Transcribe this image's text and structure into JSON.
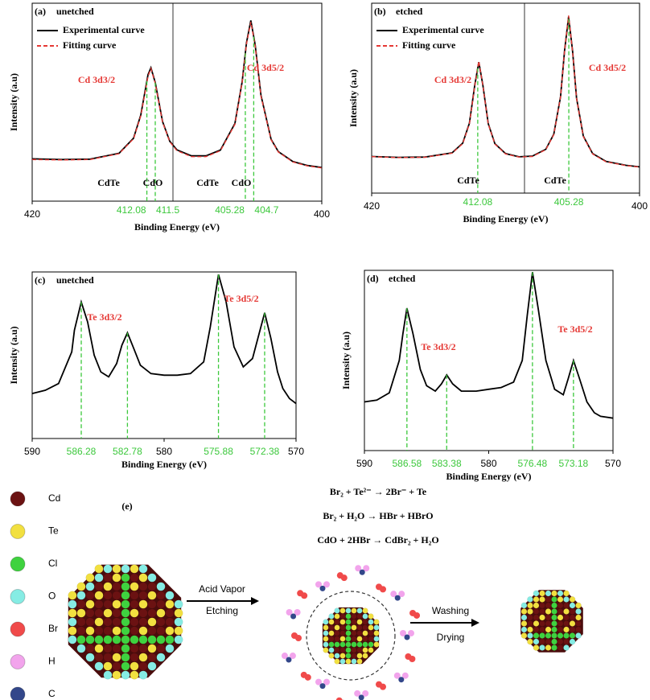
{
  "chart_data": [
    {
      "type": "line",
      "panel_label": "(a)",
      "title": "unetched",
      "xlabel": "Binding Energy (eV)",
      "ylabel": "Intensity (a.u)",
      "xlim": [
        420,
        400
      ],
      "xticks": [
        420,
        400
      ],
      "ylim": [
        0,
        1
      ],
      "x": [
        420,
        418,
        416,
        414,
        413,
        412.5,
        412,
        411.8,
        411.5,
        411,
        410.5,
        410,
        409,
        408,
        407,
        406,
        405.5,
        405.2,
        404.9,
        404.6,
        404.2,
        403.5,
        403,
        402,
        401,
        400
      ],
      "series": [
        {
          "name": "Experimental curve",
          "color": "#000000",
          "values": [
            0.214,
            0.21,
            0.212,
            0.242,
            0.318,
            0.435,
            0.639,
            0.674,
            0.599,
            0.403,
            0.303,
            0.259,
            0.229,
            0.229,
            0.258,
            0.392,
            0.603,
            0.8,
            0.913,
            0.79,
            0.535,
            0.312,
            0.25,
            0.2,
            0.18,
            0.17
          ]
        },
        {
          "name": "Fitting curve",
          "color": "#e53935",
          "dashed": true,
          "values": [
            0.21,
            0.208,
            0.21,
            0.24,
            0.315,
            0.43,
            0.63,
            0.67,
            0.595,
            0.4,
            0.3,
            0.255,
            0.225,
            0.225,
            0.255,
            0.388,
            0.6,
            0.795,
            0.905,
            0.785,
            0.53,
            0.31,
            0.248,
            0.198,
            0.178,
            0.168
          ]
        }
      ],
      "peaks": [
        412.08,
        411.5,
        405.28,
        404.7
      ],
      "peak_color": "#3cc83c",
      "peak_names": [
        "Cd 3d3/2",
        "Cd 3d5/2"
      ],
      "annotation_color": "#e53935",
      "component_labels": [
        "CdTe",
        "CdO",
        "CdTe",
        "CdO"
      ]
    },
    {
      "type": "line",
      "panel_label": "(b)",
      "title": "etched",
      "xlabel": "Binding Energy (eV)",
      "ylabel": "Intensity (a.u)",
      "xlim": [
        420,
        400
      ],
      "xticks": [
        420,
        400
      ],
      "ylim": [
        0,
        1
      ],
      "x": [
        420,
        418,
        416,
        414,
        413.2,
        412.7,
        412.3,
        412,
        411.7,
        411.3,
        410.8,
        410,
        409,
        408,
        407,
        406.4,
        405.9,
        405.6,
        405.3,
        405,
        404.7,
        404.2,
        403.5,
        402.5,
        401,
        400
      ],
      "series": [
        {
          "name": "Experimental curve",
          "color": "#000000",
          "values": [
            0.193,
            0.188,
            0.19,
            0.212,
            0.263,
            0.368,
            0.569,
            0.69,
            0.57,
            0.366,
            0.26,
            0.208,
            0.191,
            0.195,
            0.231,
            0.31,
            0.507,
            0.75,
            0.929,
            0.746,
            0.5,
            0.3,
            0.208,
            0.167,
            0.146,
            0.138
          ]
        },
        {
          "name": "Fitting curve",
          "color": "#e53935",
          "dashed": true,
          "values": [
            0.192,
            0.187,
            0.189,
            0.21,
            0.26,
            0.365,
            0.565,
            0.695,
            0.568,
            0.364,
            0.258,
            0.206,
            0.19,
            0.193,
            0.229,
            0.308,
            0.505,
            0.748,
            0.935,
            0.744,
            0.498,
            0.298,
            0.206,
            0.165,
            0.145,
            0.137
          ]
        }
      ],
      "peaks": [
        412.08,
        405.28
      ],
      "peak_color": "#3cc83c",
      "peak_names": [
        "Cd 3d3/2",
        "Cd 3d5/2"
      ],
      "annotation_color": "#e53935",
      "component_labels": [
        "CdTe",
        "CdTe"
      ]
    },
    {
      "type": "line",
      "panel_label": "(c)",
      "title": "unetched",
      "xlabel": "Binding Energy (eV)",
      "ylabel": "Intensity (a.u)",
      "xlim": [
        590,
        570
      ],
      "xticks": [
        590,
        580,
        570
      ],
      "ylim": [
        0,
        1
      ],
      "x": [
        590,
        589,
        588,
        587,
        586.8,
        586.28,
        585.8,
        585.3,
        584.8,
        584.2,
        583.6,
        583.2,
        582.78,
        582.3,
        581.8,
        581,
        580,
        579,
        578,
        577,
        576.5,
        575.88,
        575.3,
        574.7,
        574,
        573.3,
        572.8,
        572.38,
        571.9,
        571.4,
        571,
        570.5,
        570
      ],
      "series": [
        {
          "color": "#000000",
          "values": [
            0.27,
            0.29,
            0.33,
            0.52,
            0.65,
            0.82,
            0.7,
            0.5,
            0.4,
            0.37,
            0.45,
            0.56,
            0.635,
            0.54,
            0.44,
            0.39,
            0.38,
            0.38,
            0.39,
            0.46,
            0.67,
            0.985,
            0.82,
            0.55,
            0.43,
            0.48,
            0.63,
            0.755,
            0.6,
            0.4,
            0.3,
            0.24,
            0.21
          ]
        }
      ],
      "peaks": [
        586.28,
        582.78,
        575.88,
        572.38
      ],
      "peak_color": "#3cc83c",
      "peak_names": [
        "Te 3d3/2",
        "Te 3d5/2"
      ],
      "annotation_color": "#e53935"
    },
    {
      "type": "line",
      "panel_label": "(d)",
      "title": "etched",
      "xlabel": "Binding Energy (eV)",
      "ylabel": "Intensity (a.u)",
      "xlim": [
        590,
        570
      ],
      "xticks": [
        590,
        580,
        570
      ],
      "ylim": [
        0,
        1
      ],
      "x": [
        590,
        589,
        588,
        587.2,
        586.9,
        586.58,
        586.1,
        585.5,
        585,
        584.3,
        583.8,
        583.38,
        582.9,
        582.2,
        581,
        580,
        579,
        578,
        577.3,
        576.9,
        576.48,
        576,
        575.4,
        574.7,
        574,
        573.6,
        573.18,
        572.7,
        572.1,
        571.5,
        571,
        570
      ],
      "series": [
        {
          "color": "#000000",
          "values": [
            0.27,
            0.28,
            0.32,
            0.5,
            0.65,
            0.79,
            0.65,
            0.45,
            0.36,
            0.33,
            0.37,
            0.42,
            0.37,
            0.33,
            0.33,
            0.34,
            0.35,
            0.38,
            0.5,
            0.75,
            0.99,
            0.78,
            0.5,
            0.34,
            0.31,
            0.4,
            0.5,
            0.4,
            0.27,
            0.21,
            0.19,
            0.18
          ]
        }
      ],
      "peaks": [
        586.58,
        583.38,
        576.48,
        573.18
      ],
      "peak_color": "#3cc83c",
      "peak_names": [
        "Te 3d3/2",
        "Te 3d5/2"
      ],
      "annotation_color": "#e53935"
    }
  ],
  "scheme": {
    "label": "(e)",
    "legend": [
      {
        "name": "Cd",
        "color": "#6b1212"
      },
      {
        "name": "Te",
        "color": "#f2e040"
      },
      {
        "name": "Cl",
        "color": "#3fd23f"
      },
      {
        "name": "O",
        "color": "#86ece4"
      },
      {
        "name": "Br",
        "color": "#f04a4a"
      },
      {
        "name": "H",
        "color": "#f2a4ec"
      },
      {
        "name": "C",
        "color": "#33478a"
      }
    ],
    "equations": [
      "Br₂ + Te²⁻ → 2Br⁻ + Te",
      "Br₂ + H₂O → HBr + HBrO",
      "CdO + 2HBr → CdBr₂ + H₂O"
    ],
    "step1": [
      "Acid Vapor",
      "Etching"
    ],
    "step2": [
      "Washing",
      "Drying"
    ]
  }
}
